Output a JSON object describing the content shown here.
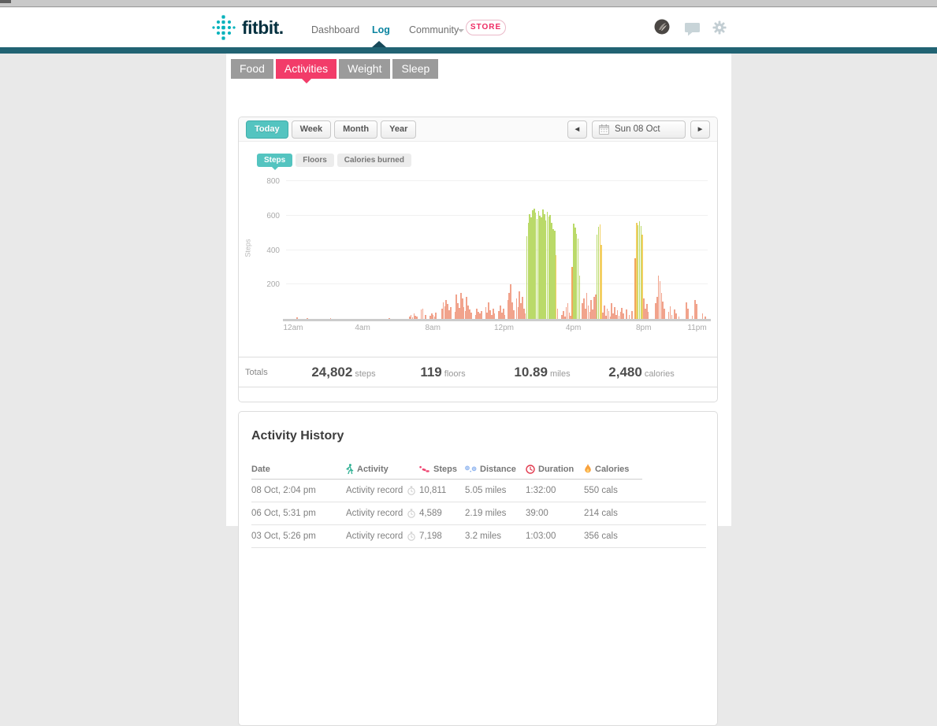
{
  "nav": {
    "brand": "fitbit.",
    "dashboard": "Dashboard",
    "log": "Log",
    "community": "Community",
    "store": "STORE"
  },
  "tabs": {
    "food": "Food",
    "activities": "Activities",
    "weight": "Weight",
    "sleep": "Sleep"
  },
  "period": {
    "today": "Today",
    "week": "Week",
    "month": "Month",
    "year": "Year"
  },
  "date_picker": {
    "prev": "◀",
    "label": "Sun 08 Oct",
    "next": "▶"
  },
  "chart_tabs": {
    "steps": "Steps",
    "floors": "Floors",
    "calories": "Calories burned"
  },
  "chart_data": {
    "type": "bar",
    "title": "Intraday steps, Sun 08 Oct",
    "ylabel": "Steps",
    "ylim": [
      0,
      800
    ],
    "yticks": [
      200,
      400,
      600,
      800
    ],
    "slot_minutes": 5,
    "slots_per_day": 288,
    "xticks": [
      {
        "hour": 0,
        "label": "12am"
      },
      {
        "hour": 4,
        "label": "4am"
      },
      {
        "hour": 8,
        "label": "8am"
      },
      {
        "hour": 12,
        "label": "12pm"
      },
      {
        "hour": 16,
        "label": "4pm"
      },
      {
        "hour": 20,
        "label": "8pm"
      },
      {
        "hour": 23,
        "label": "11pm"
      }
    ],
    "colors": {
      "r": "#f1a38c",
      "g": "#bada69",
      "y": "#f3cf63",
      "o": "#f1a75f"
    },
    "grid": true,
    "legend": "none",
    "bars": [
      [
        7,
        8,
        "r"
      ],
      [
        14,
        5,
        "r"
      ],
      [
        30,
        6,
        "r"
      ],
      [
        70,
        4,
        "r"
      ],
      [
        84,
        15,
        "r"
      ],
      [
        85,
        25,
        "r"
      ],
      [
        86,
        10,
        "r"
      ],
      [
        87,
        30,
        "r"
      ],
      [
        88,
        20,
        "r"
      ],
      [
        89,
        12,
        "r"
      ],
      [
        92,
        55,
        "r"
      ],
      [
        93,
        60,
        "r"
      ],
      [
        95,
        25,
        "r"
      ],
      [
        98,
        18,
        "r"
      ],
      [
        99,
        30,
        "r"
      ],
      [
        100,
        22,
        "r"
      ],
      [
        101,
        15,
        "r"
      ],
      [
        102,
        35,
        "r"
      ],
      [
        106,
        60,
        "r"
      ],
      [
        107,
        95,
        "r"
      ],
      [
        108,
        75,
        "r"
      ],
      [
        109,
        110,
        "r"
      ],
      [
        110,
        85,
        "r"
      ],
      [
        111,
        50,
        "r"
      ],
      [
        112,
        70,
        "r"
      ],
      [
        115,
        40,
        "r"
      ],
      [
        116,
        140,
        "r"
      ],
      [
        117,
        90,
        "r"
      ],
      [
        118,
        65,
        "r"
      ],
      [
        119,
        150,
        "r"
      ],
      [
        120,
        120,
        "r"
      ],
      [
        121,
        70,
        "r"
      ],
      [
        122,
        45,
        "r"
      ],
      [
        123,
        130,
        "r"
      ],
      [
        124,
        80,
        "r"
      ],
      [
        125,
        55,
        "r"
      ],
      [
        126,
        35,
        "r"
      ],
      [
        129,
        25,
        "r"
      ],
      [
        130,
        60,
        "r"
      ],
      [
        131,
        40,
        "r"
      ],
      [
        132,
        30,
        "r"
      ],
      [
        133,
        45,
        "r"
      ],
      [
        136,
        70,
        "r"
      ],
      [
        137,
        35,
        "r"
      ],
      [
        138,
        95,
        "r"
      ],
      [
        139,
        50,
        "r"
      ],
      [
        140,
        25,
        "r"
      ],
      [
        141,
        60,
        "r"
      ],
      [
        142,
        30,
        "r"
      ],
      [
        145,
        45,
        "r"
      ],
      [
        146,
        80,
        "r"
      ],
      [
        147,
        35,
        "r"
      ],
      [
        148,
        60,
        "r"
      ],
      [
        149,
        25,
        "r"
      ],
      [
        151,
        110,
        "r"
      ],
      [
        152,
        150,
        "r"
      ],
      [
        153,
        200,
        "r"
      ],
      [
        154,
        95,
        "r"
      ],
      [
        155,
        50,
        "r"
      ],
      [
        157,
        120,
        "r"
      ],
      [
        158,
        70,
        "r"
      ],
      [
        159,
        160,
        "r"
      ],
      [
        160,
        90,
        "r"
      ],
      [
        161,
        130,
        "r"
      ],
      [
        162,
        60,
        "r"
      ],
      [
        163,
        30,
        "r"
      ],
      [
        164,
        480,
        "g"
      ],
      [
        165,
        560,
        "g"
      ],
      [
        166,
        610,
        "g"
      ],
      [
        167,
        590,
        "g"
      ],
      [
        168,
        630,
        "g"
      ],
      [
        169,
        640,
        "g"
      ],
      [
        170,
        615,
        "g"
      ],
      [
        171,
        580,
        "g"
      ],
      [
        172,
        625,
        "g"
      ],
      [
        173,
        600,
        "g"
      ],
      [
        174,
        590,
        "g"
      ],
      [
        175,
        635,
        "g"
      ],
      [
        176,
        610,
        "g"
      ],
      [
        177,
        570,
        "g"
      ],
      [
        178,
        620,
        "g"
      ],
      [
        179,
        595,
        "g"
      ],
      [
        180,
        605,
        "g"
      ],
      [
        181,
        560,
        "g"
      ],
      [
        182,
        520,
        "g"
      ],
      [
        183,
        510,
        "g"
      ],
      [
        184,
        370,
        "y"
      ],
      [
        185,
        60,
        "r"
      ],
      [
        188,
        25,
        "r"
      ],
      [
        189,
        45,
        "r"
      ],
      [
        190,
        15,
        "r"
      ],
      [
        191,
        70,
        "r"
      ],
      [
        192,
        90,
        "r"
      ],
      [
        193,
        35,
        "r"
      ],
      [
        194,
        20,
        "r"
      ],
      [
        195,
        300,
        "o"
      ],
      [
        196,
        555,
        "g"
      ],
      [
        197,
        530,
        "g"
      ],
      [
        198,
        495,
        "g"
      ],
      [
        199,
        465,
        "g"
      ],
      [
        200,
        250,
        "g"
      ],
      [
        202,
        90,
        "r"
      ],
      [
        203,
        120,
        "r"
      ],
      [
        204,
        60,
        "r"
      ],
      [
        205,
        150,
        "r"
      ],
      [
        206,
        80,
        "r"
      ],
      [
        207,
        40,
        "r"
      ],
      [
        208,
        110,
        "r"
      ],
      [
        209,
        55,
        "r"
      ],
      [
        210,
        130,
        "r"
      ],
      [
        211,
        140,
        "r"
      ],
      [
        212,
        490,
        "g"
      ],
      [
        213,
        535,
        "g"
      ],
      [
        214,
        550,
        "y"
      ],
      [
        215,
        430,
        "y"
      ],
      [
        216,
        35,
        "r"
      ],
      [
        217,
        80,
        "r"
      ],
      [
        218,
        20,
        "r"
      ],
      [
        219,
        60,
        "r"
      ],
      [
        220,
        45,
        "r"
      ],
      [
        221,
        15,
        "r"
      ],
      [
        222,
        90,
        "r"
      ],
      [
        223,
        30,
        "r"
      ],
      [
        224,
        70,
        "r"
      ],
      [
        225,
        25,
        "r"
      ],
      [
        226,
        50,
        "r"
      ],
      [
        227,
        18,
        "r"
      ],
      [
        228,
        40,
        "r"
      ],
      [
        229,
        65,
        "r"
      ],
      [
        230,
        30,
        "r"
      ],
      [
        232,
        55,
        "r"
      ],
      [
        234,
        22,
        "r"
      ],
      [
        236,
        48,
        "r"
      ],
      [
        238,
        350,
        "o"
      ],
      [
        239,
        560,
        "y"
      ],
      [
        240,
        545,
        "g"
      ],
      [
        241,
        565,
        "g"
      ],
      [
        242,
        540,
        "g"
      ],
      [
        243,
        490,
        "y"
      ],
      [
        244,
        120,
        "r"
      ],
      [
        245,
        60,
        "r"
      ],
      [
        246,
        85,
        "r"
      ],
      [
        247,
        40,
        "r"
      ],
      [
        252,
        90,
        "r"
      ],
      [
        253,
        130,
        "r"
      ],
      [
        254,
        250,
        "r"
      ],
      [
        255,
        220,
        "r"
      ],
      [
        256,
        150,
        "r"
      ],
      [
        257,
        100,
        "r"
      ],
      [
        258,
        60,
        "r"
      ],
      [
        261,
        40,
        "r"
      ],
      [
        262,
        75,
        "r"
      ],
      [
        263,
        25,
        "r"
      ],
      [
        265,
        55,
        "r"
      ],
      [
        266,
        30,
        "r"
      ],
      [
        268,
        15,
        "r"
      ],
      [
        273,
        95,
        "r"
      ],
      [
        274,
        60,
        "r"
      ],
      [
        277,
        20,
        "r"
      ],
      [
        279,
        110,
        "r"
      ],
      [
        280,
        85,
        "r"
      ],
      [
        284,
        30,
        "r"
      ],
      [
        286,
        15,
        "r"
      ]
    ]
  },
  "totals": {
    "label": "Totals",
    "stats": [
      {
        "value": "24,802",
        "unit": "steps"
      },
      {
        "value": "119",
        "unit": "floors"
      },
      {
        "value": "10.89",
        "unit": "miles"
      },
      {
        "value": "2,480",
        "unit": "calories"
      }
    ]
  },
  "history": {
    "title": "Activity History",
    "columns": {
      "date": "Date",
      "activity": "Activity",
      "steps": "Steps",
      "distance": "Distance",
      "duration": "Duration",
      "calories": "Calories"
    },
    "rows": [
      {
        "date": "08 Oct, 2:04 pm",
        "activity": "Activity record",
        "steps": "10,811",
        "distance": "5.05 miles",
        "duration": "1:32:00",
        "calories": "550 cals"
      },
      {
        "date": "06 Oct, 5:31 pm",
        "activity": "Activity record",
        "steps": "4,589",
        "distance": "2.19 miles",
        "duration": "39:00",
        "calories": "214 cals"
      },
      {
        "date": "03 Oct, 5:26 pm",
        "activity": "Activity record",
        "steps": "7,198",
        "distance": "3.2 miles",
        "duration": "1:03:00",
        "calories": "356 cals"
      }
    ]
  }
}
